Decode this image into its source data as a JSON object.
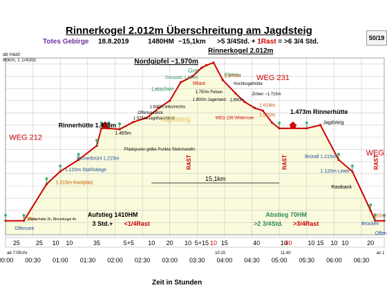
{
  "header": {
    "title": "Rinnerkogel 2.012m Überschreitung am Jagdsteig",
    "region": "Totes Gebirge",
    "date": "18.8.2019",
    "elevation_gain": "1480HM",
    "distance": "~15,1km",
    "duration_text": ">5 3/4Std. + ",
    "rest_text": "1Rast",
    "total_text": " = >6 3/4 Std.",
    "page_badge": "50/19"
  },
  "side_note": [
    "ab Haid:",
    "86km; 1 1/4Std."
  ],
  "colors": {
    "profile_line": "#cc0000",
    "fill": "#fafadc",
    "grid": "#c8c8c8",
    "region_color": "#7030a0",
    "green_label": "#2e8b57",
    "orange_label": "#cc5500",
    "blue_label": "#1f4fa0"
  },
  "chart_data": {
    "type": "area",
    "xlabel": "Zeit in Stunden",
    "x_ticks": [
      "00:00",
      "00:30",
      "01:00",
      "01:30",
      "02:00",
      "02:30",
      "03:00",
      "03:30",
      "04:00",
      "04:30",
      "05:00",
      "05:30",
      "06:00",
      "06:30"
    ],
    "x_range_minutes": [
      0,
      415
    ],
    "y_range_m": [
      600,
      2050
    ],
    "y_grid_step": 100,
    "profile": [
      {
        "t": 0,
        "elev": 715
      },
      {
        "t": 20,
        "elev": 715
      },
      {
        "t": 45,
        "elev": 1015
      },
      {
        "t": 60,
        "elev": 1120
      },
      {
        "t": 80,
        "elev": 1215
      },
      {
        "t": 100,
        "elev": 1330
      },
      {
        "t": 105,
        "elev": 1473
      },
      {
        "t": 113,
        "elev": 1473
      },
      {
        "t": 125,
        "elev": 1465
      },
      {
        "t": 140,
        "elev": 1525
      },
      {
        "t": 155,
        "elev": 1560
      },
      {
        "t": 168,
        "elev": 1640
      },
      {
        "t": 180,
        "elev": 1700
      },
      {
        "t": 192,
        "elev": 1850
      },
      {
        "t": 205,
        "elev": 1900
      },
      {
        "t": 215,
        "elev": 1970
      },
      {
        "t": 220,
        "elev": 1990
      },
      {
        "t": 228,
        "elev": 2012
      },
      {
        "t": 238,
        "elev": 1870
      },
      {
        "t": 252,
        "elev": 1760
      },
      {
        "t": 262,
        "elev": 1690
      },
      {
        "t": 273,
        "elev": 1640
      },
      {
        "t": 282,
        "elev": 1618
      },
      {
        "t": 292,
        "elev": 1520
      },
      {
        "t": 300,
        "elev": 1473
      },
      {
        "t": 330,
        "elev": 1473
      },
      {
        "t": 345,
        "elev": 1500
      },
      {
        "t": 365,
        "elev": 1215
      },
      {
        "t": 380,
        "elev": 1120
      },
      {
        "t": 400,
        "elev": 800
      },
      {
        "t": 405,
        "elev": 715
      },
      {
        "t": 415,
        "elev": 715
      }
    ],
    "peaks": [
      {
        "label": "Rinnerkogel 2.012m",
        "t": 228,
        "elev": 2012
      },
      {
        "label": "Nordgipfel ~1.970m",
        "t": 215,
        "elev": 1970
      }
    ],
    "point_labels": [
      {
        "text": "715m",
        "t": 20,
        "elev": 715,
        "color": "orange",
        "size": 7
      },
      {
        "text": "Offensee",
        "t": 10,
        "elev": 640,
        "color": "blue",
        "size": 7
      },
      {
        "text": "1.015m Rastplatz",
        "t": 55,
        "elev": 1015,
        "color": "orange",
        "size": 7
      },
      {
        "text": "1.120m Stahlstiege",
        "t": 65,
        "elev": 1120,
        "color": "blue",
        "size": 7
      },
      {
        "text": "Rinnerbrünl 1.215m",
        "t": 78,
        "elev": 1215,
        "color": "blue",
        "size": 7
      },
      {
        "text": "1.465m",
        "t": 120,
        "elev": 1420,
        "color": "black",
        "size": 7
      },
      {
        "text": "Rinnerhütte 1.473m",
        "t": 58,
        "elev": 1480,
        "color": "black",
        "size": 9
      },
      {
        "text": "Grasplatz 1.850m",
        "t": 175,
        "elev": 1880,
        "color": "green",
        "size": 6
      },
      {
        "text": "Latschen",
        "t": 160,
        "elev": 1780,
        "color": "green",
        "size": 8
      },
      {
        "text": "1.640m links/rechts",
        "t": 158,
        "elev": 1640,
        "color": "black",
        "size": 6
      },
      {
        "text": "1.525m Jagdhausblick",
        "t": 140,
        "elev": 1545,
        "color": "black",
        "size": 6
      },
      {
        "text": "Offenseeblick",
        "t": 145,
        "elev": 1590,
        "color": "black",
        "size": 6
      },
      {
        "text": "Grat",
        "t": 200,
        "elev": 1930,
        "color": "green",
        "size": 8
      },
      {
        "text": "Plateau",
        "t": 240,
        "elev": 1900,
        "color": "green",
        "size": 7
      },
      {
        "text": "5Rast",
        "t": 205,
        "elev": 1830,
        "color": "red",
        "size": 7
      },
      {
        "text": "1.750m Felsen",
        "t": 208,
        "elev": 1760,
        "color": "black",
        "size": 6
      },
      {
        "text": "1.800m Jagerland",
        "t": 205,
        "elev": 1700,
        "color": "black",
        "size": 6
      },
      {
        "text": "1.870m",
        "t": 240,
        "elev": 1890,
        "color": "orange",
        "size": 7
      },
      {
        "text": "Hochkogelhütte",
        "t": 250,
        "elev": 1830,
        "color": "black",
        "size": 6
      },
      {
        "text": "1.690m",
        "t": 246,
        "elev": 1695,
        "color": "black",
        "size": 6
      },
      {
        "text": "Zirben ~1.715m",
        "t": 270,
        "elev": 1745,
        "color": "black",
        "size": 6
      },
      {
        "text": "1.618m",
        "t": 278,
        "elev": 1650,
        "color": "orange",
        "size": 7
      },
      {
        "text": "1.520m",
        "t": 278,
        "elev": 1570,
        "color": "orange",
        "size": 7
      },
      {
        "text": "WEG 236 Wildensee",
        "t": 230,
        "elev": 1550,
        "color": "red",
        "size": 6
      },
      {
        "text": "1.473m Rinnerhütte",
        "t": 312,
        "elev": 1590,
        "color": "black",
        "size": 9
      },
      {
        "text": "Jagdsteig",
        "t": 348,
        "elev": 1510,
        "color": "black",
        "size": 7
      },
      {
        "text": "Bründl 1.215m",
        "t": 328,
        "elev": 1230,
        "color": "blue",
        "size": 7
      },
      {
        "text": "1.120m Leiter",
        "t": 345,
        "elev": 1110,
        "color": "blue",
        "size": 7
      },
      {
        "text": "Rastbank",
        "t": 357,
        "elev": 980,
        "color": "black",
        "size": 7
      },
      {
        "text": "715m",
        "t": 403,
        "elev": 745,
        "color": "orange",
        "size": 7
      },
      {
        "text": "Brücken",
        "t": 390,
        "elev": 680,
        "color": "blue",
        "size": 7
      },
      {
        "text": "Offensee",
        "t": 405,
        "elev": 600,
        "color": "blue",
        "size": 7
      },
      {
        "text": "Rinnerhütte 2h, Rinnerkogel 4h",
        "t": 25,
        "elev": 720,
        "color": "black",
        "size": 5
      },
      {
        "text": "Pfadspuren gelbe Punkte Steinmandln",
        "t": 130,
        "elev": 1290,
        "color": "black",
        "size": 6
      }
    ],
    "trail_labels": [
      {
        "text": "WEG 212",
        "t": 4,
        "elev": 1380,
        "size": 11
      },
      {
        "text": "WEG 231",
        "t": 275,
        "elev": 1870,
        "size": 11
      },
      {
        "text": "WEG 212",
        "t": 395,
        "elev": 1250,
        "size": 11
      }
    ],
    "rest_markers": [
      {
        "text": "RAST",
        "t": 200
      },
      {
        "text": "RAST",
        "t": 305
      },
      {
        "text": "RAST",
        "t": 405
      }
    ],
    "jagdsteig_label": "Jagdsteig",
    "distance_marker": {
      "text": "15,1km",
      "t_from": 160,
      "t_to": 300
    },
    "ascent_box": {
      "title": "Aufstieg 1410HM",
      "line1": "3 Std.+ ",
      "line2": "<1/4Rast"
    },
    "descent_box": {
      "title": "Abstieg 70HM",
      "line1": ">2 3/4Std. ",
      "line2": ">3/4Rast"
    },
    "time_marks": [
      {
        "text": "10:15",
        "t": 228
      },
      {
        "text": "11:40",
        "t": 300
      },
      {
        "text": "ab 7:05Uhr",
        "t": 0
      },
      {
        "text": "an 1",
        "t": 405
      }
    ],
    "segment_minutes": [
      {
        "text": "25",
        "t": 12
      },
      {
        "text": "25",
        "t": 37
      },
      {
        "text": "10",
        "t": 55
      },
      {
        "text": "10",
        "t": 70
      },
      {
        "text": "35",
        "t": 100
      },
      {
        "text": "5+5",
        "t": 135
      },
      {
        "text": "10",
        "t": 160
      },
      {
        "text": "20",
        "t": 180
      },
      {
        "text": "10",
        "t": 200
      },
      {
        "text": "5+15",
        "t": 215
      },
      {
        "text": "10",
        "t": 228
      },
      {
        "text": "15",
        "t": 240
      },
      {
        "text": "40",
        "t": 275
      },
      {
        "text": "10",
        "t": 305
      },
      {
        "text": "10",
        "t": 335
      },
      {
        "text": "40",
        "t": 310
      },
      {
        "text": "15",
        "t": 345
      },
      {
        "text": "10",
        "t": 360
      },
      {
        "text": "10",
        "t": 372
      },
      {
        "text": "20",
        "t": 400
      }
    ]
  }
}
